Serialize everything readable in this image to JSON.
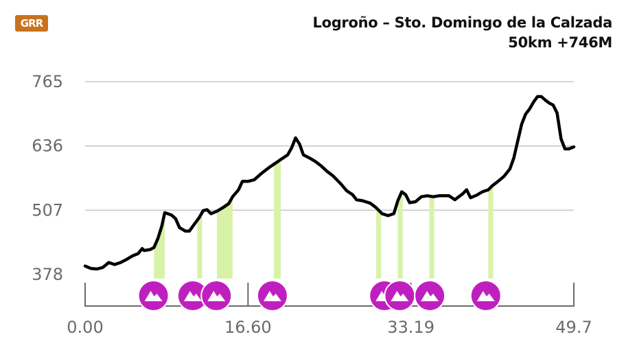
{
  "logo": {
    "text": "GRR",
    "color": "#c9721c"
  },
  "header": {
    "title": "Logroño – Sto. Domingo de la Calzada",
    "subtitle": "50km +746M"
  },
  "colors": {
    "line": "#000000",
    "grid": "#c8c8c8",
    "marker": "#c01fc0",
    "highlight": "#d8f2a8",
    "axis": "#6a6a6a"
  },
  "chart_data": {
    "type": "area",
    "title": "",
    "xlabel": "",
    "ylabel": "",
    "x_ticks": [
      "0.00",
      "16.60",
      "33.19",
      "49.7"
    ],
    "y_ticks": [
      "765",
      "636",
      "507",
      "378"
    ],
    "xlim": [
      0,
      49.7
    ],
    "ylim": [
      378,
      765
    ],
    "grid": true,
    "series": [
      {
        "points": [
          [
            0.0,
            395
          ],
          [
            0.6,
            390
          ],
          [
            1.2,
            389
          ],
          [
            1.8,
            392
          ],
          [
            2.4,
            402
          ],
          [
            3.0,
            398
          ],
          [
            3.6,
            402
          ],
          [
            4.2,
            408
          ],
          [
            4.8,
            415
          ],
          [
            5.4,
            420
          ],
          [
            5.8,
            430
          ],
          [
            6.0,
            426
          ],
          [
            6.6,
            428
          ],
          [
            7.0,
            432
          ],
          [
            7.4,
            450
          ],
          [
            7.8,
            475
          ],
          [
            8.1,
            502
          ],
          [
            8.4,
            500
          ],
          [
            8.8,
            497
          ],
          [
            9.2,
            490
          ],
          [
            9.6,
            472
          ],
          [
            10.2,
            465
          ],
          [
            10.6,
            465
          ],
          [
            11.0,
            476
          ],
          [
            11.6,
            492
          ],
          [
            12.0,
            506
          ],
          [
            12.4,
            508
          ],
          [
            12.8,
            500
          ],
          [
            13.4,
            505
          ],
          [
            14.0,
            512
          ],
          [
            14.6,
            520
          ],
          [
            15.0,
            534
          ],
          [
            15.6,
            548
          ],
          [
            16.0,
            565
          ],
          [
            16.6,
            565
          ],
          [
            17.2,
            568
          ],
          [
            18.0,
            582
          ],
          [
            18.8,
            594
          ],
          [
            19.4,
            602
          ],
          [
            20.0,
            610
          ],
          [
            20.6,
            618
          ],
          [
            21.0,
            632
          ],
          [
            21.4,
            652
          ],
          [
            21.8,
            640
          ],
          [
            22.2,
            618
          ],
          [
            22.8,
            612
          ],
          [
            23.4,
            605
          ],
          [
            24.0,
            596
          ],
          [
            24.6,
            585
          ],
          [
            25.2,
            576
          ],
          [
            26.0,
            560
          ],
          [
            26.6,
            546
          ],
          [
            27.2,
            538
          ],
          [
            27.6,
            528
          ],
          [
            28.2,
            526
          ],
          [
            29.0,
            521
          ],
          [
            29.6,
            512
          ],
          [
            30.2,
            500
          ],
          [
            30.8,
            496
          ],
          [
            31.4,
            500
          ],
          [
            31.8,
            526
          ],
          [
            32.2,
            544
          ],
          [
            32.6,
            538
          ],
          [
            33.0,
            522
          ],
          [
            33.6,
            524
          ],
          [
            34.2,
            534
          ],
          [
            34.8,
            536
          ],
          [
            35.4,
            534
          ],
          [
            36.0,
            536
          ],
          [
            36.6,
            536
          ],
          [
            37.0,
            536
          ],
          [
            37.6,
            528
          ],
          [
            38.0,
            534
          ],
          [
            38.4,
            540
          ],
          [
            38.8,
            548
          ],
          [
            39.2,
            532
          ],
          [
            39.8,
            537
          ],
          [
            40.4,
            544
          ],
          [
            41.0,
            548
          ],
          [
            41.4,
            556
          ],
          [
            42.0,
            565
          ],
          [
            42.6,
            575
          ],
          [
            43.2,
            590
          ],
          [
            43.6,
            612
          ],
          [
            44.0,
            646
          ],
          [
            44.4,
            680
          ],
          [
            44.8,
            700
          ],
          [
            45.2,
            710
          ],
          [
            45.6,
            724
          ],
          [
            46.0,
            735
          ],
          [
            46.4,
            735
          ],
          [
            46.8,
            728
          ],
          [
            47.2,
            722
          ],
          [
            47.6,
            718
          ],
          [
            48.0,
            702
          ],
          [
            48.4,
            650
          ],
          [
            48.8,
            630
          ],
          [
            49.2,
            630
          ],
          [
            49.7,
            634
          ]
        ]
      }
    ],
    "highlights": [
      {
        "x_start": 7.0,
        "x_end": 8.1
      },
      {
        "x_start": 11.4,
        "x_end": 11.9
      },
      {
        "x_start": 13.4,
        "x_end": 15.0
      },
      {
        "x_start": 19.2,
        "x_end": 19.9
      },
      {
        "x_start": 29.6,
        "x_end": 30.1
      },
      {
        "x_start": 31.8,
        "x_end": 32.3
      },
      {
        "x_start": 35.0,
        "x_end": 35.5
      },
      {
        "x_start": 41.0,
        "x_end": 41.5
      }
    ],
    "climb_markers": [
      {
        "x": 6.95,
        "icon": "mountain-icon"
      },
      {
        "x": 10.95,
        "icon": "mountain-icon"
      },
      {
        "x": 13.35,
        "icon": "mountain-icon"
      },
      {
        "x": 19.05,
        "icon": "mountain-icon"
      },
      {
        "x": 30.45,
        "icon": "mountain-icon"
      },
      {
        "x": 32.0,
        "icon": "mountain-icon"
      },
      {
        "x": 35.05,
        "icon": "mountain-icon"
      },
      {
        "x": 40.75,
        "icon": "mountain-icon"
      }
    ]
  }
}
